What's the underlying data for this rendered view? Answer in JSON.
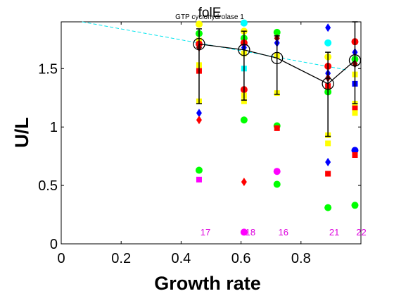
{
  "chart_data": {
    "type": "scatter",
    "title": "folE",
    "subtitle": "GTP cyclohydrolase 1",
    "xlabel": "Growth rate",
    "ylabel": "U/L",
    "xlim": [
      0,
      1
    ],
    "ylim": [
      0,
      1.9
    ],
    "xticks": [
      "0",
      "0.2",
      "0.4",
      "0.6",
      "0.8"
    ],
    "yticks": [
      "0",
      "0.5",
      "1",
      "1.5"
    ],
    "grid": false,
    "legend": "none",
    "colors": {
      "yellow": "#ffff00",
      "red": "#ff0000",
      "green": "#00ff00",
      "cyan": "#00ffff",
      "blue": "#0000ff",
      "magenta": "#ff00ff",
      "darkred": "#8b0000",
      "black": "#000000",
      "trend": "#00e5ee",
      "count_label": "#dd00dd"
    },
    "x": [
      0.46,
      0.61,
      0.72,
      0.89,
      0.98
    ],
    "mean_line": {
      "y": [
        1.71,
        1.66,
        1.59,
        1.37,
        1.57
      ]
    },
    "error_bars": {
      "upper": [
        1.84,
        1.82,
        1.78,
        1.64,
        1.9
      ],
      "lower": [
        1.2,
        1.23,
        1.28,
        0.92,
        1.2
      ]
    },
    "trend_line": {
      "x": [
        0.07,
        0.95
      ],
      "y": [
        1.9,
        1.49
      ]
    },
    "counts": [
      {
        "x": 0.46,
        "label": "17"
      },
      {
        "x": 0.61,
        "label": "18"
      },
      {
        "x": 0.72,
        "label": "16"
      },
      {
        "x": 0.89,
        "label": "21"
      },
      {
        "x": 0.98,
        "label": "22"
      }
    ],
    "points": [
      {
        "x": 0.46,
        "y": 1.88,
        "color": "yellow",
        "marker": "circle"
      },
      {
        "x": 0.46,
        "y": 1.8,
        "color": "green",
        "marker": "circle"
      },
      {
        "x": 0.46,
        "y": 1.74,
        "color": "yellow",
        "marker": "square"
      },
      {
        "x": 0.46,
        "y": 1.71,
        "color": "red",
        "marker": "circle"
      },
      {
        "x": 0.46,
        "y": 1.68,
        "color": "darkred",
        "marker": "diamond"
      },
      {
        "x": 0.46,
        "y": 1.53,
        "color": "yellow",
        "marker": "square"
      },
      {
        "x": 0.46,
        "y": 1.48,
        "color": "red",
        "marker": "square"
      },
      {
        "x": 0.46,
        "y": 1.22,
        "color": "yellow",
        "marker": "square"
      },
      {
        "x": 0.46,
        "y": 1.12,
        "color": "blue",
        "marker": "diamond"
      },
      {
        "x": 0.46,
        "y": 1.06,
        "color": "red",
        "marker": "diamond"
      },
      {
        "x": 0.46,
        "y": 0.63,
        "color": "green",
        "marker": "circle"
      },
      {
        "x": 0.46,
        "y": 0.55,
        "color": "magenta",
        "marker": "square"
      },
      {
        "x": 0.61,
        "y": 1.89,
        "color": "cyan",
        "marker": "circle"
      },
      {
        "x": 0.61,
        "y": 1.82,
        "color": "yellow",
        "marker": "circle"
      },
      {
        "x": 0.61,
        "y": 1.76,
        "color": "green",
        "marker": "circle"
      },
      {
        "x": 0.61,
        "y": 1.72,
        "color": "red",
        "marker": "circle"
      },
      {
        "x": 0.61,
        "y": 1.68,
        "color": "blue",
        "marker": "diamond"
      },
      {
        "x": 0.61,
        "y": 1.63,
        "color": "yellow",
        "marker": "square"
      },
      {
        "x": 0.61,
        "y": 1.5,
        "color": "cyan",
        "marker": "square"
      },
      {
        "x": 0.61,
        "y": 1.32,
        "color": "red",
        "marker": "circle"
      },
      {
        "x": 0.61,
        "y": 1.27,
        "color": "yellow",
        "marker": "square"
      },
      {
        "x": 0.61,
        "y": 1.22,
        "color": "yellow",
        "marker": "square"
      },
      {
        "x": 0.61,
        "y": 1.06,
        "color": "green",
        "marker": "circle"
      },
      {
        "x": 0.61,
        "y": 0.53,
        "color": "red",
        "marker": "diamond"
      },
      {
        "x": 0.61,
        "y": 0.1,
        "color": "magenta",
        "marker": "circle"
      },
      {
        "x": 0.72,
        "y": 1.81,
        "color": "green",
        "marker": "circle"
      },
      {
        "x": 0.72,
        "y": 1.76,
        "color": "darkred",
        "marker": "diamond"
      },
      {
        "x": 0.72,
        "y": 1.72,
        "color": "blue",
        "marker": "diamond"
      },
      {
        "x": 0.72,
        "y": 1.61,
        "color": "yellow",
        "marker": "square"
      },
      {
        "x": 0.72,
        "y": 1.29,
        "color": "yellow",
        "marker": "square"
      },
      {
        "x": 0.72,
        "y": 1.01,
        "color": "green",
        "marker": "circle"
      },
      {
        "x": 0.72,
        "y": 0.99,
        "color": "red",
        "marker": "square"
      },
      {
        "x": 0.72,
        "y": 0.62,
        "color": "magenta",
        "marker": "circle"
      },
      {
        "x": 0.72,
        "y": 0.51,
        "color": "green",
        "marker": "circle"
      },
      {
        "x": 0.89,
        "y": 1.85,
        "color": "blue",
        "marker": "diamond"
      },
      {
        "x": 0.89,
        "y": 1.72,
        "color": "cyan",
        "marker": "circle"
      },
      {
        "x": 0.89,
        "y": 1.6,
        "color": "yellow",
        "marker": "circle"
      },
      {
        "x": 0.89,
        "y": 1.52,
        "color": "red",
        "marker": "circle"
      },
      {
        "x": 0.89,
        "y": 1.46,
        "color": "blue",
        "marker": "diamond"
      },
      {
        "x": 0.89,
        "y": 1.42,
        "color": "darkred",
        "marker": "diamond"
      },
      {
        "x": 0.89,
        "y": 1.35,
        "color": "red",
        "marker": "square"
      },
      {
        "x": 0.89,
        "y": 1.3,
        "color": "green",
        "marker": "circle"
      },
      {
        "x": 0.89,
        "y": 0.93,
        "color": "yellow",
        "marker": "square"
      },
      {
        "x": 0.89,
        "y": 0.86,
        "color": "yellow",
        "marker": "square"
      },
      {
        "x": 0.89,
        "y": 0.7,
        "color": "blue",
        "marker": "diamond"
      },
      {
        "x": 0.89,
        "y": 0.6,
        "color": "red",
        "marker": "square"
      },
      {
        "x": 0.89,
        "y": 0.31,
        "color": "green",
        "marker": "circle"
      },
      {
        "x": 0.98,
        "y": 1.73,
        "color": "red",
        "marker": "circle"
      },
      {
        "x": 0.98,
        "y": 1.64,
        "color": "blue",
        "marker": "diamond"
      },
      {
        "x": 0.98,
        "y": 1.58,
        "color": "green",
        "marker": "circle"
      },
      {
        "x": 0.98,
        "y": 1.54,
        "color": "darkred",
        "marker": "diamond"
      },
      {
        "x": 0.98,
        "y": 1.45,
        "color": "yellow",
        "marker": "square"
      },
      {
        "x": 0.98,
        "y": 1.37,
        "color": "blue",
        "marker": "square"
      },
      {
        "x": 0.98,
        "y": 1.2,
        "color": "yellow",
        "marker": "square"
      },
      {
        "x": 0.98,
        "y": 1.16,
        "color": "red",
        "marker": "square"
      },
      {
        "x": 0.98,
        "y": 1.12,
        "color": "yellow",
        "marker": "square"
      },
      {
        "x": 0.98,
        "y": 0.8,
        "color": "blue",
        "marker": "circle"
      },
      {
        "x": 0.98,
        "y": 0.76,
        "color": "red",
        "marker": "square"
      },
      {
        "x": 0.98,
        "y": 0.33,
        "color": "green",
        "marker": "circle"
      }
    ]
  }
}
